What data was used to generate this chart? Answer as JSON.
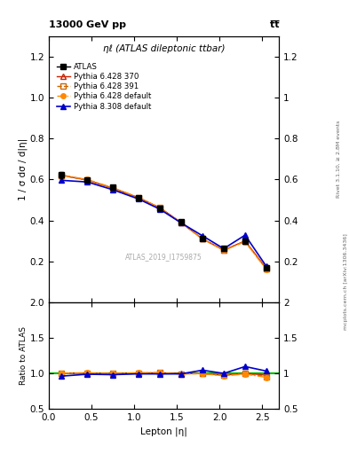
{
  "title_main": "ηℓ (ATLAS dileptonic ttbar)",
  "header_left": "13000 GeV pp",
  "header_right": "t̅t̅",
  "right_label_top": "Rivet 3.1.10, ≥ 2.8M events",
  "right_label_bot": "mcplots.cern.ch [arXiv:1306.3436]",
  "watermark": "ATLAS_2019_I1759875",
  "ylabel_main": "1 / σ dσ / d|η|",
  "ylabel_ratio": "Ratio to ATLAS",
  "xlabel": "Lepton |η|",
  "xdata": [
    0.15,
    0.45,
    0.75,
    1.05,
    1.3,
    1.55,
    1.8,
    2.05,
    2.3,
    2.55
  ],
  "atlas_y": [
    0.622,
    0.597,
    0.562,
    0.51,
    0.46,
    0.392,
    0.312,
    0.263,
    0.3,
    0.17
  ],
  "atlas_yerr": [
    0.015,
    0.01,
    0.01,
    0.01,
    0.01,
    0.01,
    0.01,
    0.01,
    0.008,
    0.01
  ],
  "py6_370_y": [
    0.621,
    0.597,
    0.558,
    0.511,
    0.462,
    0.39,
    0.31,
    0.255,
    0.3,
    0.165
  ],
  "py6_391_y": [
    0.62,
    0.597,
    0.558,
    0.511,
    0.462,
    0.388,
    0.31,
    0.255,
    0.298,
    0.162
  ],
  "py6_def_y": [
    0.622,
    0.6,
    0.56,
    0.513,
    0.462,
    0.388,
    0.31,
    0.253,
    0.296,
    0.16
  ],
  "py8_def_y": [
    0.596,
    0.588,
    0.55,
    0.505,
    0.455,
    0.388,
    0.325,
    0.262,
    0.328,
    0.175
  ],
  "xlim": [
    0.0,
    2.7
  ],
  "ylim_main": [
    0.0,
    1.3
  ],
  "ylim_ratio": [
    0.5,
    2.0
  ],
  "yticks_main": [
    0.2,
    0.4,
    0.6,
    0.8,
    1.0,
    1.2
  ],
  "yticks_ratio": [
    0.5,
    1.0,
    1.5,
    2.0
  ],
  "xticks": [
    0.0,
    0.5,
    1.0,
    1.5,
    2.0,
    2.5
  ],
  "color_atlas": "#000000",
  "color_py6_370": "#cc2200",
  "color_py6_391": "#cc6600",
  "color_py6_def": "#ff8800",
  "color_py8_def": "#0000cc",
  "ratio_line_color": "#00bb00",
  "bg_color": "#ffffff"
}
